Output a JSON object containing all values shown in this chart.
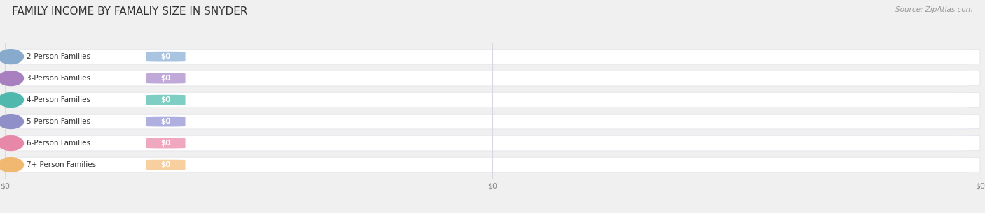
{
  "title": "FAMILY INCOME BY FAMALIY SIZE IN SNYDER",
  "source_text": "Source: ZipAtlas.com",
  "categories": [
    "2-Person Families",
    "3-Person Families",
    "4-Person Families",
    "5-Person Families",
    "6-Person Families",
    "7+ Person Families"
  ],
  "values": [
    0,
    0,
    0,
    0,
    0,
    0
  ],
  "bar_colors": [
    "#a8c4e0",
    "#c0a8d8",
    "#7ecec4",
    "#b0b0e0",
    "#f0a8c0",
    "#f8d0a0"
  ],
  "dot_colors": [
    "#88aacc",
    "#a880c0",
    "#50b8ac",
    "#9090c8",
    "#e888a8",
    "#f0b870"
  ],
  "value_label": "$0",
  "background_color": "#f0f0f0",
  "bar_bg_color": "#ffffff",
  "bar_bg_shadow": "#e0e0e8",
  "title_fontsize": 11,
  "label_fontsize": 7.5,
  "source_fontsize": 7.5,
  "bar_height": 0.7,
  "x_tick_labels": [
    "$0",
    "$0",
    "$0"
  ],
  "x_tick_positions": [
    0.0,
    0.5,
    1.0
  ],
  "grid_color": "#d8d8e0",
  "label_color": "#333333",
  "axis_label_color": "#888888"
}
